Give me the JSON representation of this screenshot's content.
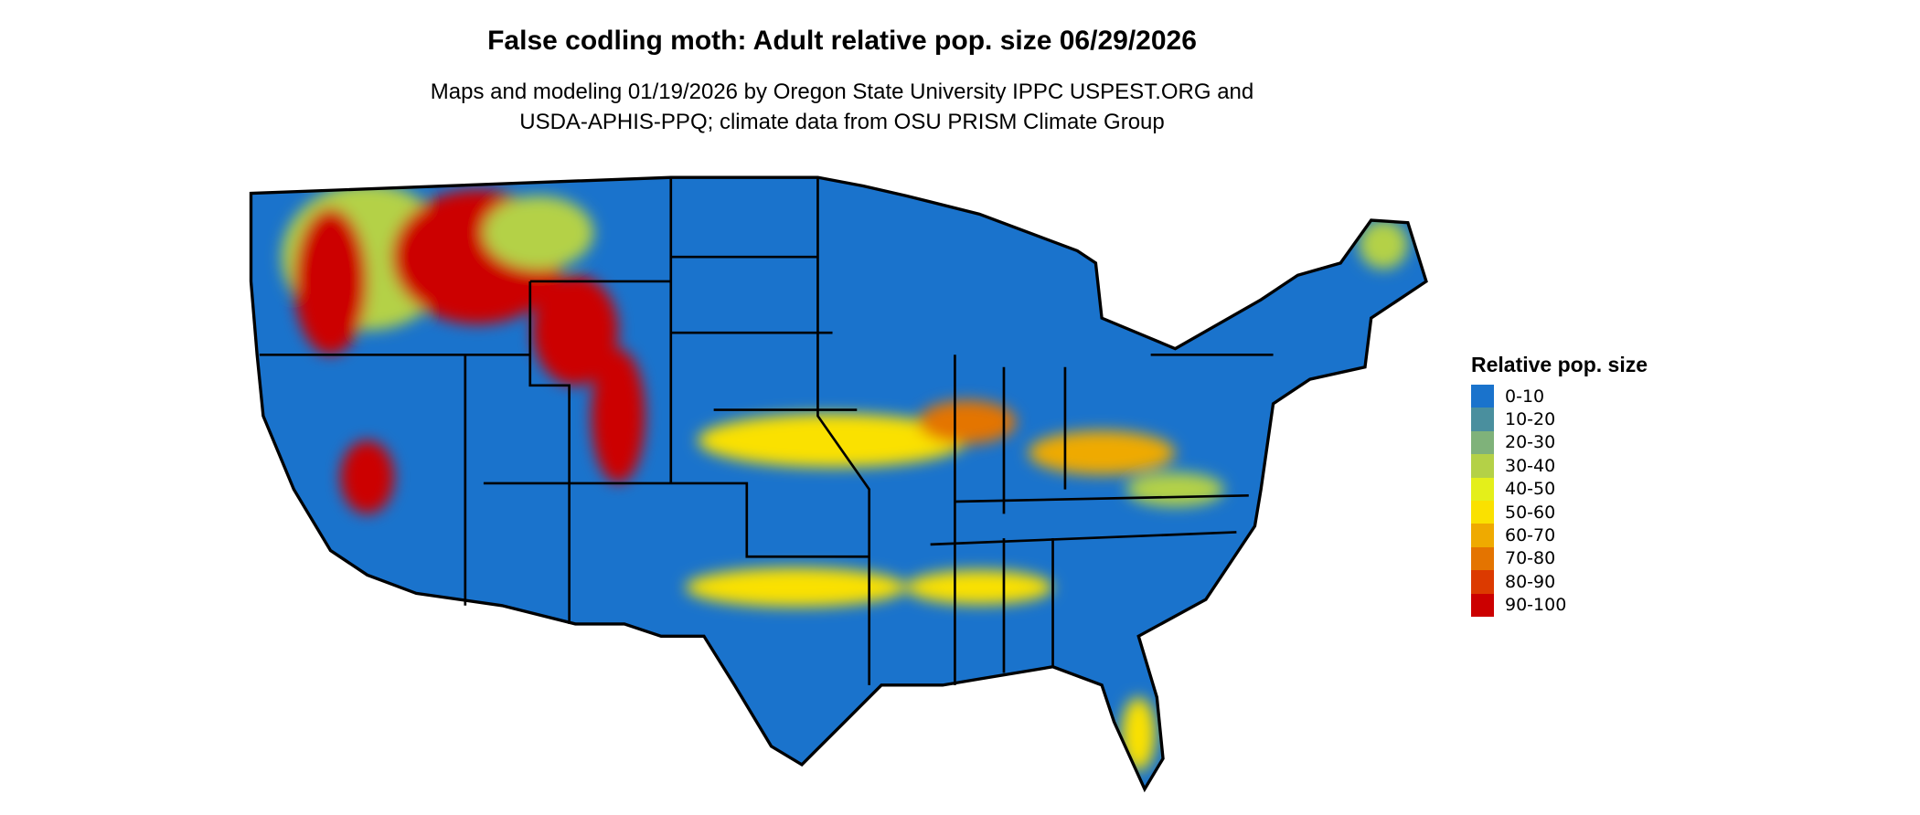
{
  "title": "False codling moth: Adult relative pop. size 06/29/2026",
  "subtitle_line1": "Maps and modeling 01/19/2026 by Oregon State University IPPC USPEST.ORG and",
  "subtitle_line2": "USDA-APHIS-PPQ; climate data from OSU PRISM Climate Group",
  "legend": {
    "title": "Relative pop. size",
    "items": [
      {
        "label": "0-10",
        "color": "#1a73cc"
      },
      {
        "label": "10-20",
        "color": "#4a8f9e"
      },
      {
        "label": "20-30",
        "color": "#7fb27a"
      },
      {
        "label": "30-40",
        "color": "#b4d147"
      },
      {
        "label": "40-50",
        "color": "#e4ef1a"
      },
      {
        "label": "50-60",
        "color": "#fae100"
      },
      {
        "label": "60-70",
        "color": "#efaa00"
      },
      {
        "label": "70-80",
        "color": "#e47400"
      },
      {
        "label": "80-90",
        "color": "#dc3a00"
      },
      {
        "label": "90-100",
        "color": "#cc0000"
      }
    ]
  }
}
